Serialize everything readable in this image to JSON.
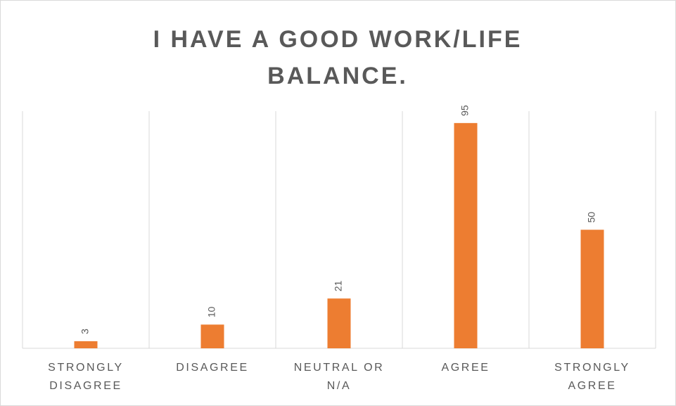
{
  "chart_data": {
    "type": "bar",
    "title": "I HAVE A GOOD WORK/LIFE BALANCE.",
    "categories": [
      "STRONGLY DISAGREE",
      "DISAGREE",
      "NEUTRAL OR N/A",
      "AGREE",
      "STRONGLY AGREE"
    ],
    "values": [
      3,
      10,
      21,
      95,
      50
    ],
    "color": "#ed7d31",
    "ylim": [
      0,
      100
    ],
    "category_grid": true
  }
}
